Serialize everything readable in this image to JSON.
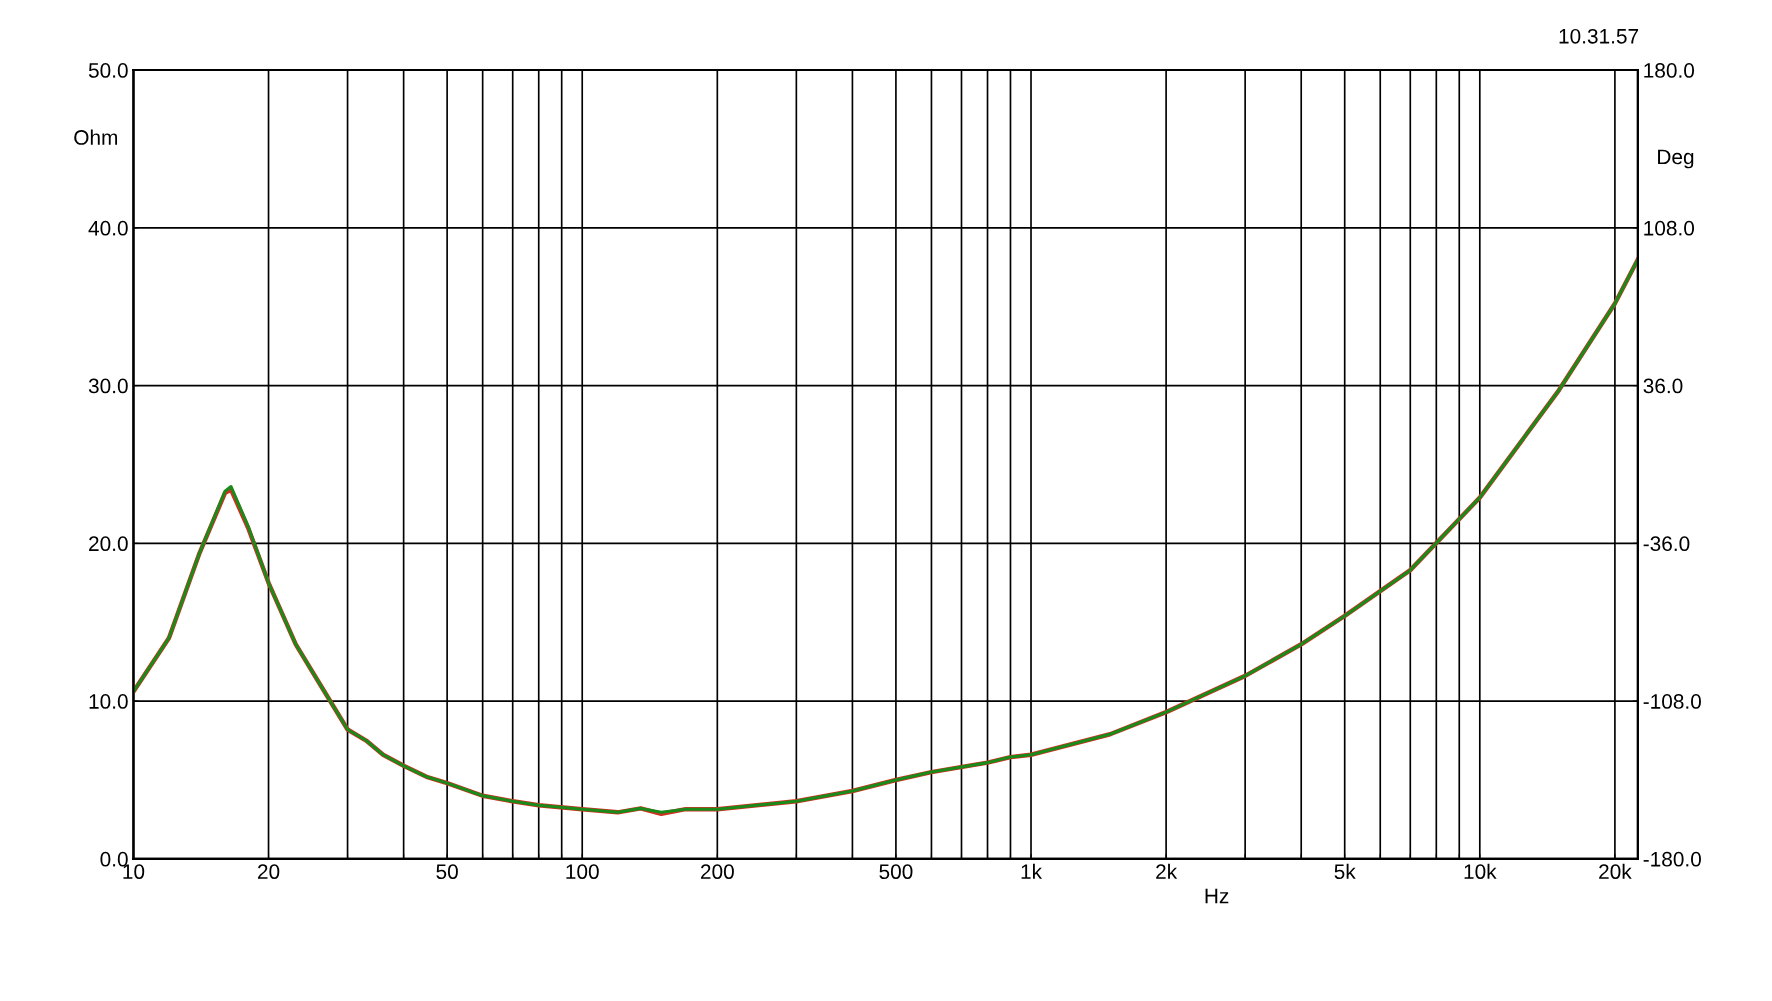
{
  "chart_data": {
    "type": "line",
    "xlabel": "Hz",
    "ylabel": "Ohm",
    "y2label": "Deg",
    "log": "x",
    "grid": true,
    "marker": "none",
    "line_style": "solid",
    "annotations": [
      "10.31.57"
    ],
    "xlim": [
      10,
      22500
    ],
    "xticks": [
      10,
      {
        "value": 20,
        "label": "20"
      },
      {
        "value": 30,
        "label": null
      },
      {
        "value": 40,
        "label": null
      },
      50,
      {
        "value": 60,
        "label": null
      },
      {
        "value": 70,
        "label": null
      },
      {
        "value": 80,
        "label": null
      },
      {
        "value": 90,
        "label": null
      },
      100,
      200,
      {
        "value": 300,
        "label": null
      },
      {
        "value": 400,
        "label": null
      },
      500,
      {
        "value": 600,
        "label": null
      },
      {
        "value": 700,
        "label": null
      },
      {
        "value": 800,
        "label": null
      },
      {
        "value": 900,
        "label": null
      },
      {
        "value": 1000,
        "label": "1k"
      },
      {
        "value": 2000,
        "label": "2k"
      },
      {
        "value": 3000,
        "label": null
      },
      {
        "value": 4000,
        "label": null
      },
      {
        "value": 5000,
        "label": "5k"
      },
      {
        "value": 6000,
        "label": null
      },
      {
        "value": 7000,
        "label": null
      },
      {
        "value": 8000,
        "label": null
      },
      {
        "value": 9000,
        "label": null
      },
      {
        "value": 10000,
        "label": "10k"
      },
      {
        "value": 20000,
        "label": "20k"
      }
    ],
    "ylim": [
      0,
      50
    ],
    "yticks": [
      {
        "value": 0,
        "label": "0.0"
      },
      {
        "value": 10,
        "label": "10.0"
      },
      {
        "value": 20,
        "label": "20.0"
      },
      {
        "value": 30,
        "label": "30.0"
      },
      {
        "value": 40,
        "label": "40.0"
      },
      {
        "value": 50,
        "label": "50.0"
      }
    ],
    "y2lim": [
      -180,
      180
    ],
    "y2ticks": [
      {
        "value": -180,
        "label": "-180.0"
      },
      {
        "value": -108,
        "label": "-108.0"
      },
      {
        "value": -36,
        "label": "-36.0"
      },
      {
        "value": 36,
        "label": "36.0"
      },
      {
        "value": 108,
        "label": "108.0"
      },
      {
        "value": 180,
        "label": "180.0"
      }
    ],
    "x": [
      10,
      12,
      14,
      16,
      16.5,
      18,
      20,
      23,
      26,
      30,
      33,
      36,
      40,
      45,
      50,
      60,
      70,
      80,
      100,
      120,
      135,
      150,
      170,
      200,
      300,
      400,
      500,
      600,
      800,
      900,
      1000,
      1500,
      2000,
      3000,
      4000,
      5000,
      7000,
      10000,
      15000,
      20000,
      22500
    ],
    "series": [
      {
        "color": "#d03020",
        "values": [
          10.6,
          14.0,
          19.3,
          23.2,
          23.4,
          21.0,
          17.5,
          13.6,
          11.1,
          8.2,
          7.5,
          6.6,
          5.9,
          5.2,
          4.8,
          4.0,
          3.65,
          3.4,
          3.15,
          2.95,
          3.2,
          2.85,
          3.15,
          3.15,
          3.65,
          4.3,
          5.0,
          5.5,
          6.1,
          6.45,
          6.6,
          7.9,
          9.3,
          11.6,
          13.6,
          15.4,
          18.3,
          22.9,
          29.7,
          35.2,
          38.0
        ]
      },
      {
        "color": "#1a8a1a",
        "values": [
          10.6,
          14.0,
          19.3,
          23.3,
          23.6,
          21.1,
          17.5,
          13.6,
          11.1,
          8.2,
          7.5,
          6.6,
          5.9,
          5.2,
          4.8,
          4.0,
          3.65,
          3.4,
          3.15,
          2.95,
          3.2,
          2.95,
          3.15,
          3.15,
          3.65,
          4.3,
          5.0,
          5.5,
          6.1,
          6.45,
          6.6,
          7.9,
          9.3,
          11.6,
          13.6,
          15.4,
          18.3,
          22.9,
          29.7,
          35.2,
          38.0
        ]
      }
    ]
  }
}
